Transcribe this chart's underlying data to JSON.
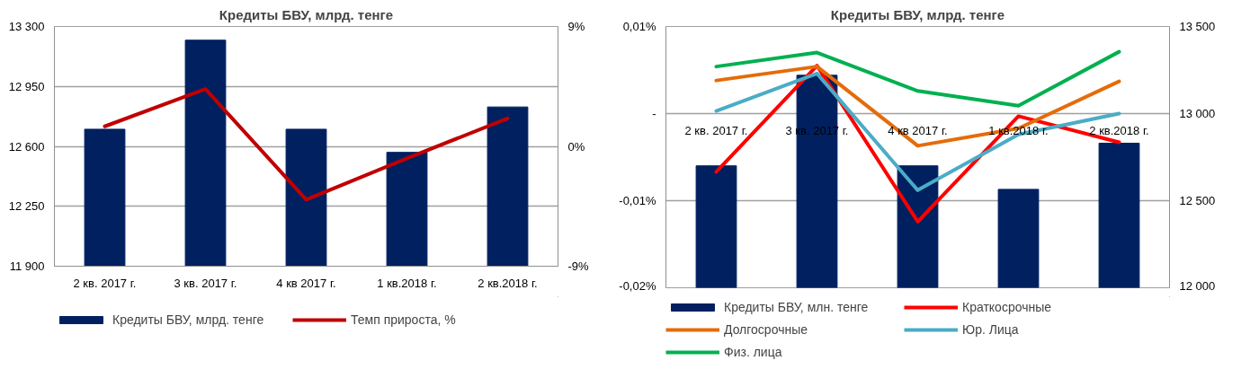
{
  "chart_data": [
    {
      "type": "bar",
      "title": "Кредиты БВУ, млрд. тенге",
      "categories": [
        "2 кв. 2017 г.",
        "3 кв. 2017 г.",
        "4 кв 2017 г.",
        "1 кв.2018 г.",
        "2 кв.2018 г."
      ],
      "series": [
        {
          "name": "Кредиты БВУ, млрд. тенге",
          "color": "#002060",
          "values": [
            12700,
            13220,
            12700,
            12565,
            12830
          ]
        },
        {
          "name": "Темп прироста, %",
          "type": "line",
          "axis": "y2",
          "color": "#c00000",
          "values": [
            1.5,
            4.3,
            -4.0,
            -0.9,
            2.1
          ]
        }
      ],
      "ylim": [
        11900,
        13300
      ],
      "yticks": [
        {
          "value": 11900,
          "label": "11 900"
        },
        {
          "value": 12250,
          "label": "12 250"
        },
        {
          "value": 12600,
          "label": "12 600"
        },
        {
          "value": 12950,
          "label": "12 950"
        },
        {
          "value": 13300,
          "label": "13 300"
        }
      ],
      "y2lim": [
        -9,
        9
      ],
      "y2ticks": [
        {
          "value": -9,
          "label": "-9%"
        },
        {
          "value": 0,
          "label": "0%"
        },
        {
          "value": 9,
          "label": "9%"
        }
      ],
      "grid": "y",
      "legend": "bottom"
    },
    {
      "type": "bar",
      "title": "Кредиты БВУ, млрд. тенге",
      "categories": [
        "2 кв. 2017 г.",
        "3 кв. 2017 г.",
        "4 кв 2017 г.",
        "1 кв.2018 г.",
        "2 кв.2018 г."
      ],
      "series": [
        {
          "name": "Кредиты БВУ, млн. тенге",
          "axis": "y2",
          "color": "#002060",
          "values": [
            12700,
            13220,
            12700,
            12565,
            12830
          ]
        },
        {
          "name": "Краткосрочные",
          "type": "line",
          "color": "#ff0000",
          "values": [
            -0.0067,
            0.0055,
            -0.0124,
            -0.0003,
            -0.0033
          ]
        },
        {
          "name": "Долгосрочные",
          "type": "line",
          "color": "#e46c0a",
          "values": [
            0.0038,
            0.0054,
            -0.0037,
            -0.0017,
            0.0037
          ]
        },
        {
          "name": "Юр. Лица",
          "type": "line",
          "color": "#4bacc6",
          "values": [
            0.0003,
            0.0046,
            -0.0088,
            -0.0024,
            0.0
          ]
        },
        {
          "name": "Физ. лица",
          "type": "line",
          "color": "#00b050",
          "values": [
            0.0054,
            0.007,
            0.0026,
            0.0009,
            0.0071
          ]
        }
      ],
      "ylim": [
        -0.02,
        0.01
      ],
      "yticks": [
        {
          "value": -0.02,
          "label": "-0,02%"
        },
        {
          "value": -0.01,
          "label": "-0,01%"
        },
        {
          "value": 0,
          "label": "-"
        },
        {
          "value": 0.01,
          "label": "0,01%"
        }
      ],
      "y2lim": [
        12000,
        13500
      ],
      "y2ticks": [
        {
          "value": 12000,
          "label": "12 000"
        },
        {
          "value": 12500,
          "label": "12 500"
        },
        {
          "value": 13000,
          "label": "13 000"
        },
        {
          "value": 13500,
          "label": "13 500"
        }
      ],
      "grid": "y",
      "legend": "bottom"
    }
  ]
}
